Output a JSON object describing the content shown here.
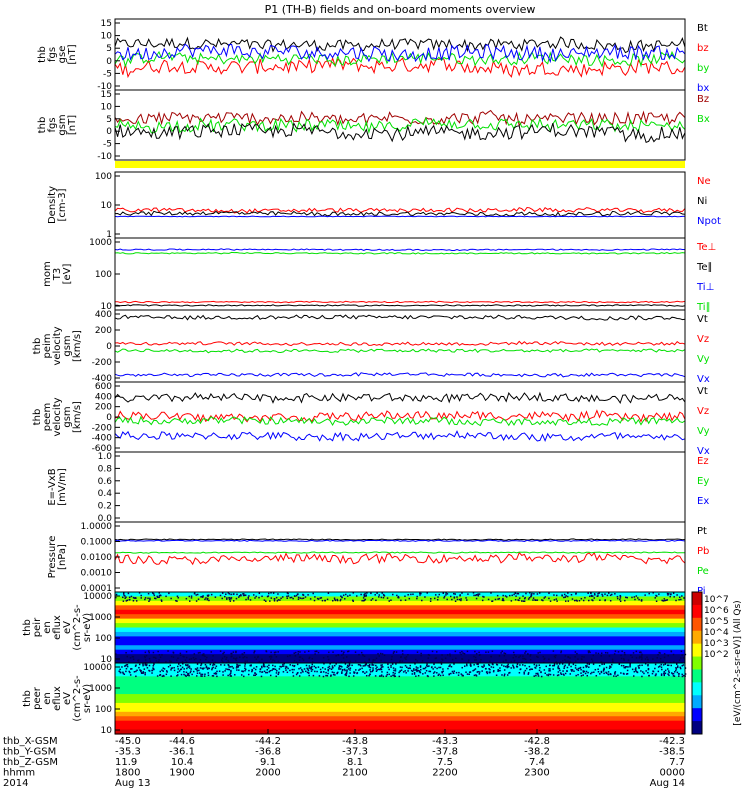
{
  "title": "P1  (TH-B) fields and on-board moments overview",
  "chart_data": {
    "type": "line",
    "x_axis": {
      "rows": [
        {
          "name": "thb_X-GSM",
          "values": [
            "-45.0",
            "-44.6",
            "-44.2",
            "-43.8",
            "-43.3",
            "-42.8",
            "-42.3"
          ]
        },
        {
          "name": "thb_Y-GSM",
          "values": [
            "-35.3",
            "-36.1",
            "-36.8",
            "-37.3",
            "-37.8",
            "-38.2",
            "-38.5"
          ]
        },
        {
          "name": "thb_Z-GSM",
          "values": [
            "11.9",
            "10.4",
            "9.1",
            "8.1",
            "7.5",
            "7.4",
            "7.7"
          ]
        },
        {
          "name": "hhmm",
          "values": [
            "1800",
            "1900",
            "2000",
            "2100",
            "2200",
            "2300",
            "0000"
          ]
        },
        {
          "name": "2014",
          "values": [
            "Aug 13",
            "",
            "",
            "",
            "",
            "",
            "Aug 14"
          ]
        }
      ]
    },
    "panels": [
      {
        "id": "fgs-gse",
        "ylabel": [
          "thb",
          "fgs",
          "gse",
          "[nT]"
        ],
        "ylim": [
          -10,
          15
        ],
        "ticks": [
          "15",
          "10",
          "5",
          "0",
          "-5",
          "-10"
        ],
        "series": [
          {
            "name": "Bt",
            "color": "#000000",
            "level": 6,
            "noise": 2.0
          },
          {
            "name": "bz",
            "color": "#ff0000",
            "level": -2,
            "noise": 2.5
          },
          {
            "name": "by",
            "color": "#00e000",
            "level": 1,
            "noise": 2.0
          },
          {
            "name": "bx",
            "color": "#0000ff",
            "level": 3,
            "noise": 2.5
          }
        ]
      },
      {
        "id": "fgs-gsm",
        "ylabel": [
          "thb",
          "fgs",
          "gsm",
          "[nT]"
        ],
        "ylim": [
          -10,
          15
        ],
        "ticks": [
          "15",
          "10",
          "5",
          "0",
          "-5",
          "-10"
        ],
        "series": [
          {
            "name": "Bz",
            "color": "#a00000",
            "level": 5,
            "noise": 2.2
          },
          {
            "name": "Bx",
            "color": "#00e000",
            "level": 2,
            "noise": 2.2
          },
          {
            "name": "",
            "color": "#000000",
            "level": 0,
            "noise": 2.5
          }
        ]
      },
      {
        "id": "density",
        "ylabel": [
          "Density",
          "[cm-3]"
        ],
        "log": true,
        "ylim": [
          1,
          100
        ],
        "ticks": [
          "100",
          "10",
          "1"
        ],
        "series": [
          {
            "name": "Ne",
            "color": "#ff0000",
            "level": 7,
            "noise": 0.06
          },
          {
            "name": "Ni",
            "color": "#000000",
            "level": 5.5,
            "noise": 0.06
          },
          {
            "name": "Npot",
            "color": "#0000ff",
            "level": 4.5,
            "noise": 0.01
          }
        ]
      },
      {
        "id": "temperature",
        "ylabel": [
          "mom",
          "T3",
          "[eV]"
        ],
        "log": true,
        "ylim": [
          10,
          2000
        ],
        "ticks": [
          "1000",
          "100",
          "10"
        ],
        "series": [
          {
            "name": "Te⊥",
            "color": "#ff0000",
            "level": 18,
            "noise": 0.02
          },
          {
            "name": "Te∥",
            "color": "#000000",
            "level": 14,
            "noise": 0.02
          },
          {
            "name": "Ti⊥",
            "color": "#0000ff",
            "level": 850,
            "noise": 0.02
          },
          {
            "name": "Ti∥",
            "color": "#00e000",
            "level": 650,
            "noise": 0.02
          }
        ]
      },
      {
        "id": "peim-velocity",
        "ylabel": [
          "thb",
          "peim",
          "velocity",
          "gsm",
          "[km/s]"
        ],
        "ylim": [
          -450,
          450
        ],
        "ticks": [
          "400",
          "200",
          "0",
          "-200",
          "-400"
        ],
        "series": [
          {
            "name": "Vt",
            "color": "#000000",
            "level": 360,
            "noise": 25
          },
          {
            "name": "Vz",
            "color": "#ff0000",
            "level": 30,
            "noise": 20
          },
          {
            "name": "Vy",
            "color": "#00e000",
            "level": -60,
            "noise": 20
          },
          {
            "name": "Vx",
            "color": "#0000ff",
            "level": -360,
            "noise": 20
          }
        ]
      },
      {
        "id": "peem-velocity",
        "ylabel": [
          "thb",
          "peem",
          "velocity",
          "gsm",
          "[km/s]"
        ],
        "ylim": [
          -600,
          600
        ],
        "ticks": [
          "600",
          "400",
          "200",
          "0",
          "-200",
          "-400",
          "-600"
        ],
        "series": [
          {
            "name": "Vt",
            "color": "#000000",
            "level": 330,
            "noise": 70
          },
          {
            "name": "Vz",
            "color": "#ff0000",
            "level": 20,
            "noise": 70
          },
          {
            "name": "Vy",
            "color": "#00e000",
            "level": -70,
            "noise": 60
          },
          {
            "name": "Vx",
            "color": "#0000ff",
            "level": -330,
            "noise": 70
          }
        ]
      },
      {
        "id": "efield",
        "ylabel": [
          "E=-VxB",
          "[mV/m]"
        ],
        "ylim": [
          0,
          1
        ],
        "ticks": [
          "1.0",
          "0.8",
          "0.6",
          "0.4",
          "0.2",
          "0.0"
        ],
        "series": [
          {
            "name": "Ez",
            "color": "#ff0000"
          },
          {
            "name": "Ey",
            "color": "#00e000"
          },
          {
            "name": "Ex",
            "color": "#0000ff"
          }
        ]
      },
      {
        "id": "pressure",
        "ylabel": [
          "Pressure",
          "[nPa]"
        ],
        "log": true,
        "ylim": [
          0.0001,
          1
        ],
        "ticks": [
          "1.0000",
          "0.1000",
          "0.0100",
          "0.0010",
          "0.0001"
        ],
        "series": [
          {
            "name": "Pt",
            "color": "#000000",
            "level": 0.1,
            "noise": 0.03
          },
          {
            "name": "Pb",
            "color": "#ff0000",
            "level": 0.008,
            "noise": 0.25
          },
          {
            "name": "Pe",
            "color": "#00e000",
            "level": 0.018,
            "noise": 0.03
          },
          {
            "name": "Pi",
            "color": "#0000ff",
            "level": 0.085,
            "noise": 0.03
          }
        ]
      },
      {
        "id": "peir-spectrogram",
        "type": "heatmap",
        "ylabel": [
          "thb",
          "peir",
          "en",
          "eflux",
          "eV",
          "(cm^2-s-",
          "sr-eV)"
        ],
        "ticks": [
          "10000",
          "1000",
          "100",
          "10"
        ]
      },
      {
        "id": "peer-spectrogram",
        "type": "heatmap",
        "ylabel": [
          "thb",
          "peer",
          "en",
          "eflux",
          "eV",
          "(cm^2-s-",
          "sr-eV)"
        ],
        "ticks": [
          "10000",
          "1000",
          "100",
          "10"
        ]
      }
    ],
    "colorbar": {
      "label": "[eV/(cm^2-s-sr-eV)] (All Qs)",
      "ticks": [
        "10^7",
        "10^6",
        "10^5",
        "10^4",
        "10^3",
        "10^2"
      ]
    },
    "bar_colors": [
      "#000080",
      "#0000ff",
      "#00aaff",
      "#00ffff",
      "#00ff80",
      "#80ff00",
      "#ffff00",
      "#ffaa00",
      "#ff5500",
      "#ff0000",
      "#cc0000"
    ]
  }
}
